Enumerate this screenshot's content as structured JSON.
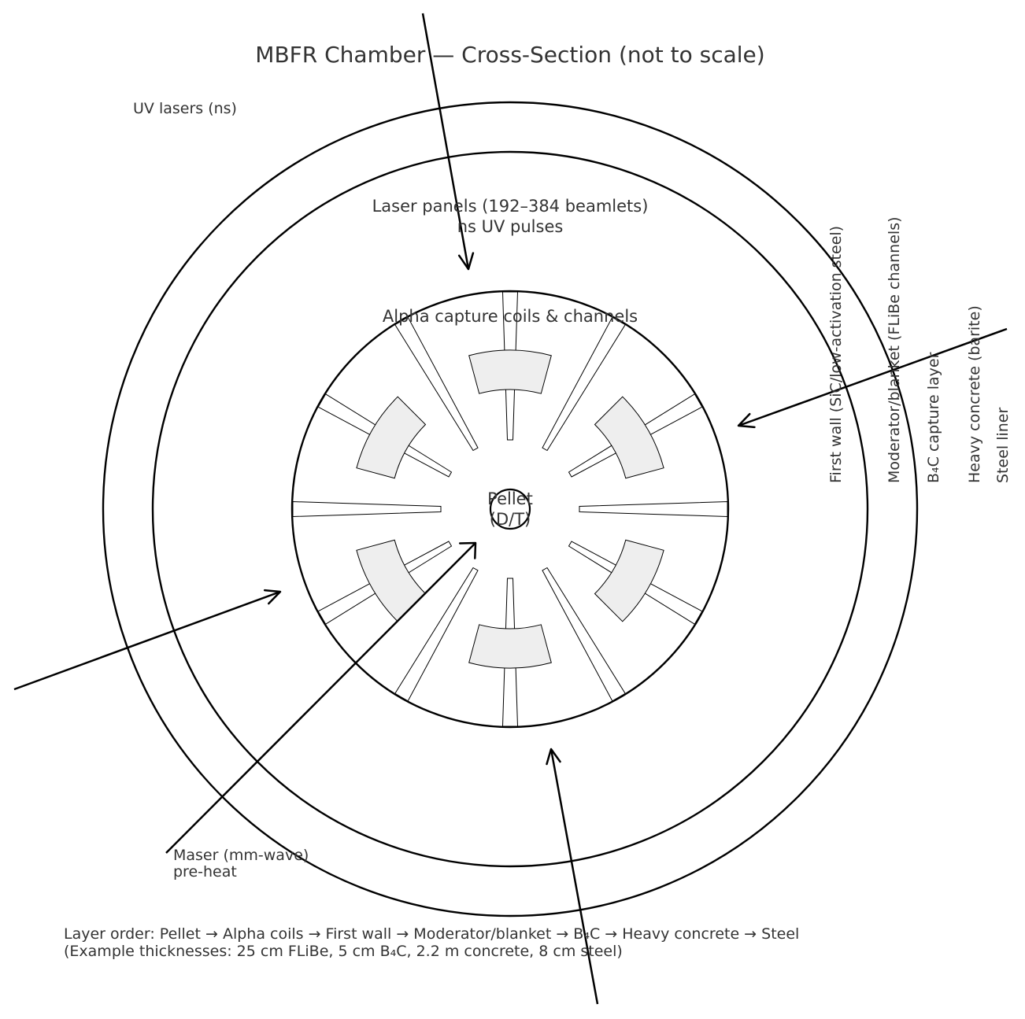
{
  "title": "MBFR Chamber — Cross-Section (not to scale)",
  "labels": {
    "uv_lasers": "UV lasers (ns)",
    "laser_panels_line1": "Laser panels (192–384 beamlets)",
    "laser_panels_line2": "ns UV pulses",
    "alpha_coils": "Alpha capture coils & channels",
    "pellet_line1": "Pellet",
    "pellet_line2": "(D/T)",
    "maser_line1": "Maser (mm-wave)",
    "maser_line2": "pre-heat"
  },
  "layer_labels": [
    "First wall (SiC/low-activation steel)",
    "Moderator/blanket (FLiBe channels)",
    "B₄C capture layer",
    "Heavy concrete (barite)",
    "Steel liner"
  ],
  "footer": {
    "line1": "Layer order: Pellet → Alpha coils → First wall → Moderator/blanket → B₄C → Heavy concrete → Steel",
    "line2": "(Example thicknesses: 25 cm FLiBe, 5 cm B₄C, 2.2 m concrete, 8 cm steel)"
  },
  "colors": {
    "coil_fill": "#eeeeee",
    "stroke": "#000000",
    "text": "#333333"
  },
  "coil_count": 6,
  "channel_count": 12
}
